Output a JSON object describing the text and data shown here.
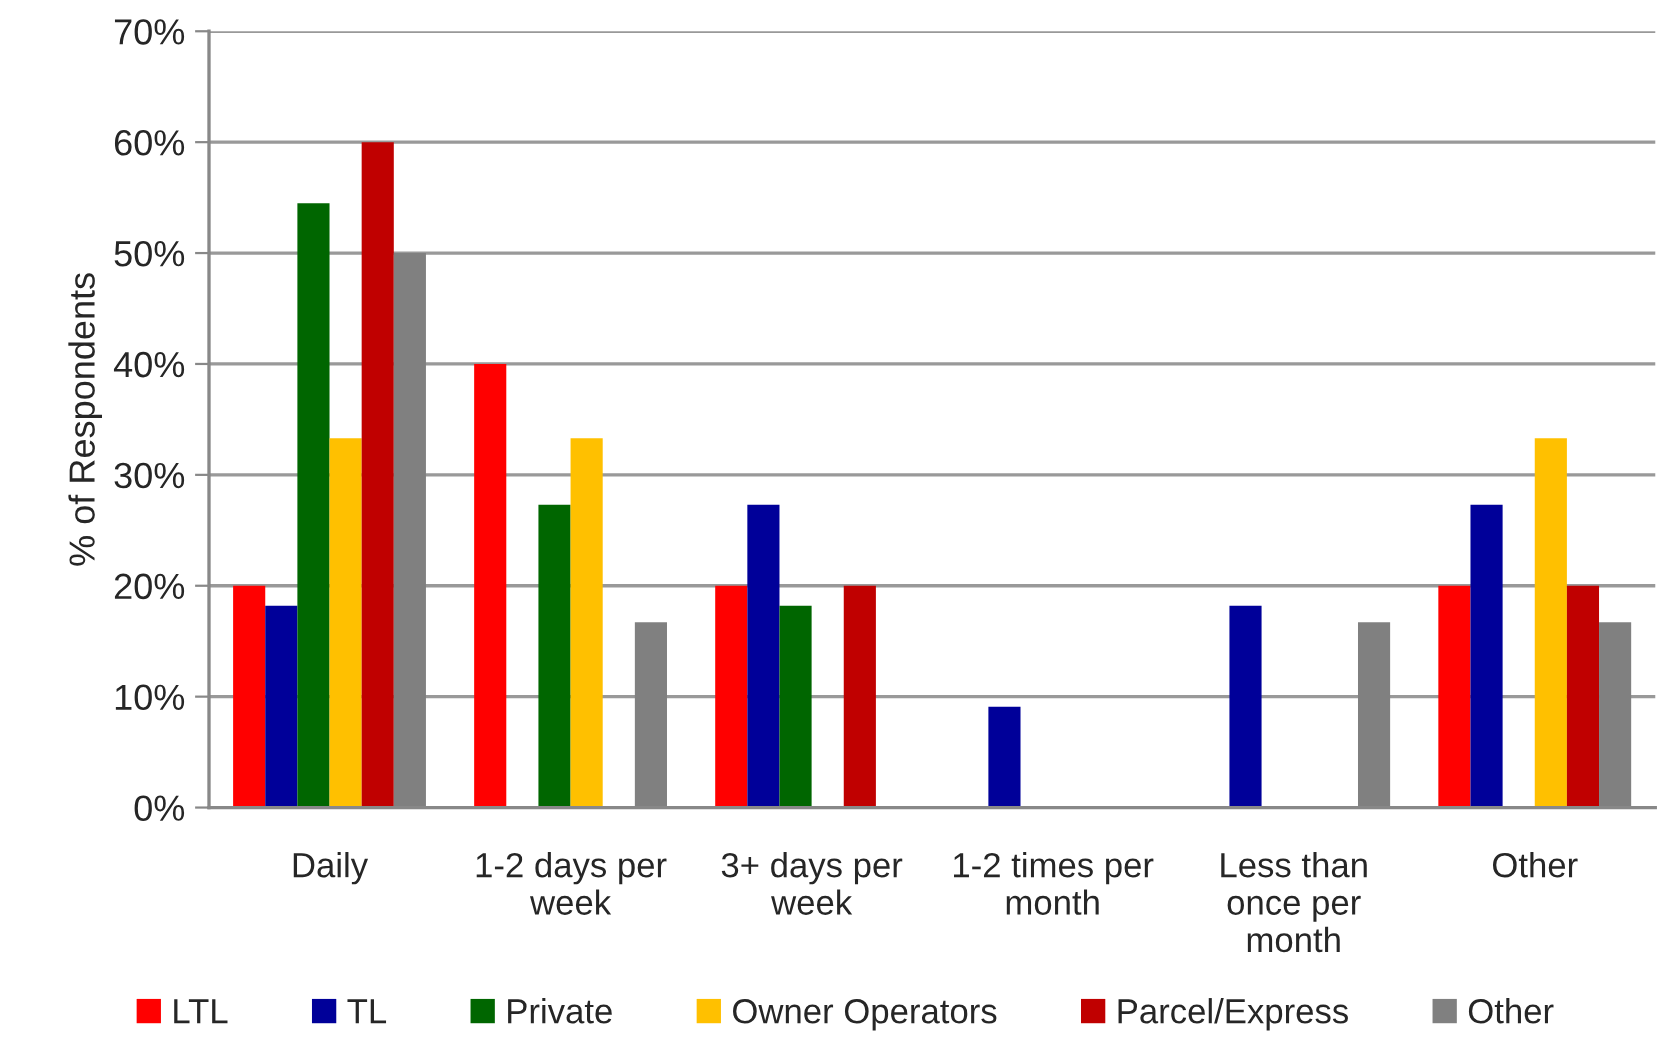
{
  "chart_data": {
    "type": "bar",
    "ylabel": "% of Respondents",
    "categories": [
      "Daily",
      "1-2 days per\nweek",
      "3+ days per\nweek",
      "1-2 times per\nmonth",
      "Less than\nonce per\nmonth",
      "Other"
    ],
    "series": [
      {
        "name": "LTL",
        "color": "#ff0000",
        "values": [
          20,
          40,
          20,
          0,
          0,
          20
        ]
      },
      {
        "name": "TL",
        "color": "#000099",
        "values": [
          18.2,
          0,
          27.3,
          9.1,
          18.2,
          27.3
        ]
      },
      {
        "name": "Private",
        "color": "#006600",
        "values": [
          54.5,
          27.3,
          18.2,
          0,
          0,
          0
        ]
      },
      {
        "name": "Owner Operators",
        "color": "#ffc000",
        "values": [
          33.3,
          33.3,
          0,
          0,
          0,
          33.3
        ]
      },
      {
        "name": "Parcel/Express",
        "color": "#c00000",
        "values": [
          60,
          0,
          20,
          0,
          0,
          20
        ]
      },
      {
        "name": "Other",
        "color": "#808080",
        "values": [
          50,
          16.7,
          0,
          0,
          16.7,
          16.7
        ]
      }
    ],
    "ylim": [
      0,
      70
    ],
    "yticks": [
      {
        "value": 0,
        "label": "0%"
      },
      {
        "value": 10,
        "label": "10%"
      },
      {
        "value": 20,
        "label": "20%"
      },
      {
        "value": 30,
        "label": "30%"
      },
      {
        "value": 40,
        "label": "40%"
      },
      {
        "value": 50,
        "label": "50%"
      },
      {
        "value": 60,
        "label": "60%"
      },
      {
        "value": 70,
        "label": "70%"
      }
    ],
    "grid": "y",
    "legend": "bottom"
  }
}
